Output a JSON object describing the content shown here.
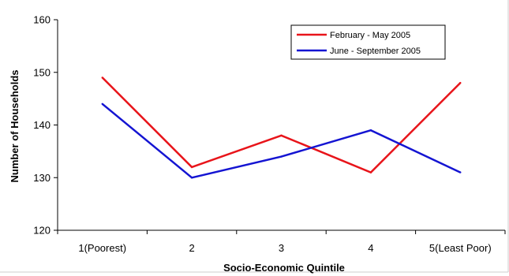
{
  "chart_data": {
    "type": "line",
    "categories": [
      "1(Poorest)",
      "2",
      "3",
      "4",
      "5(Least Poor)"
    ],
    "series": [
      {
        "name": "February - May 2005",
        "values": [
          149,
          132,
          138,
          131,
          148
        ],
        "color": "#e8141a"
      },
      {
        "name": "June - September 2005",
        "values": [
          144,
          130,
          134,
          139,
          131
        ],
        "color": "#1414d2"
      }
    ],
    "xlabel": "Socio-Economic Quintile",
    "ylabel": "Number of Households",
    "ylim": [
      120,
      160
    ],
    "yticks": [
      120,
      130,
      140,
      150,
      160
    ],
    "grid": false,
    "legend_position": "top-right"
  }
}
